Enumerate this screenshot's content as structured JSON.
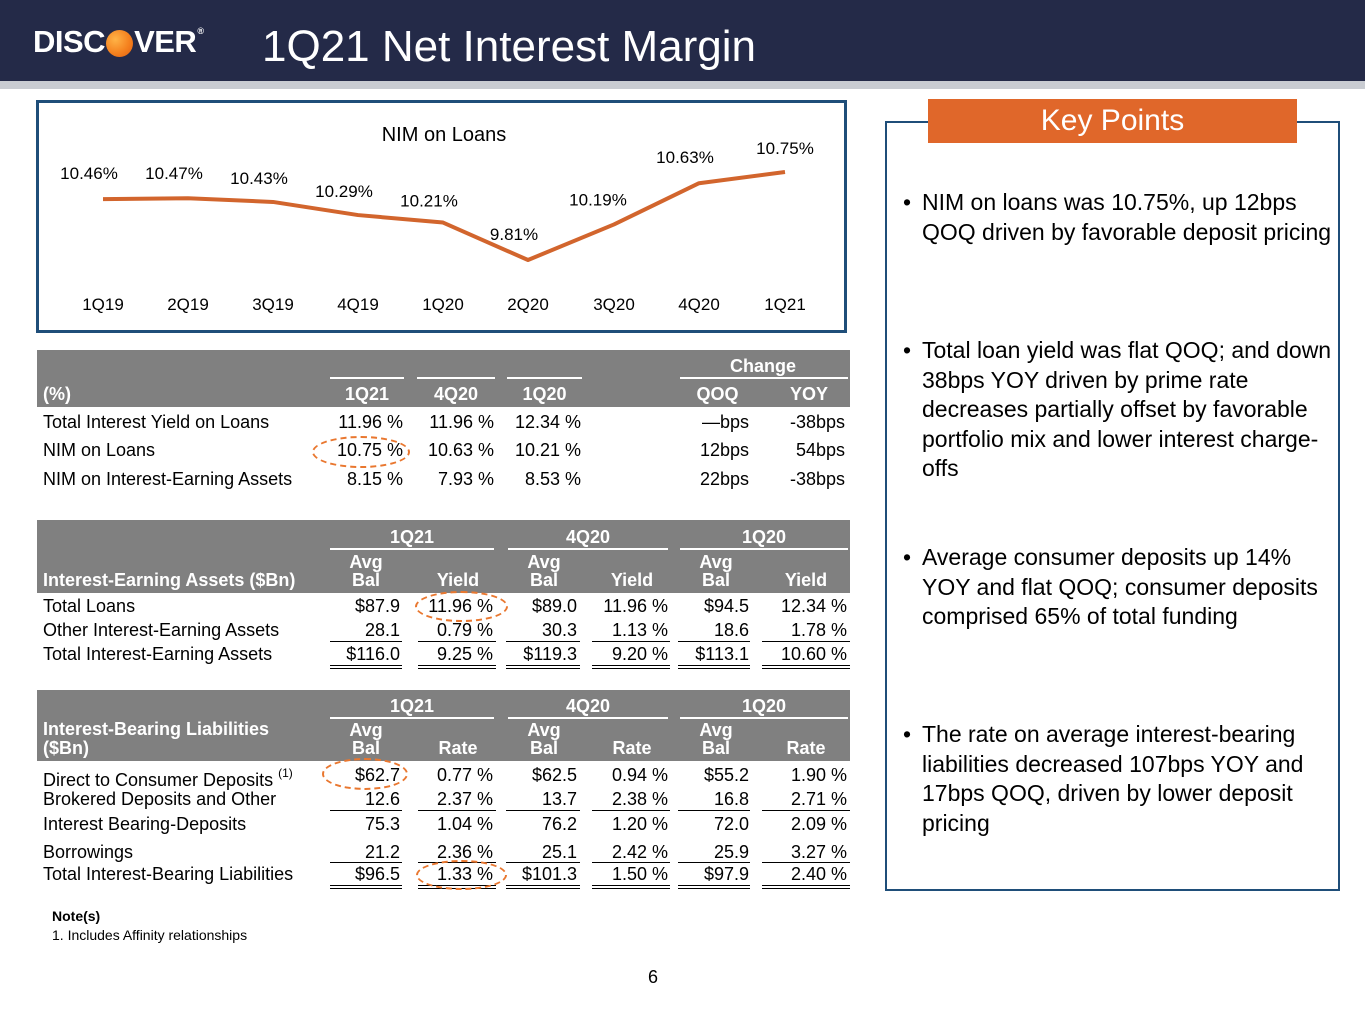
{
  "header": {
    "logo_text_a": "DISC",
    "logo_text_b": "VER",
    "logo_reg": "®",
    "title": "1Q21 Net Interest Margin"
  },
  "chart_data": {
    "type": "line",
    "title": "NIM on Loans",
    "categories": [
      "1Q19",
      "2Q19",
      "3Q19",
      "4Q19",
      "1Q20",
      "2Q20",
      "3Q20",
      "4Q20",
      "1Q21"
    ],
    "values": [
      10.46,
      10.47,
      10.43,
      10.29,
      10.21,
      9.81,
      10.19,
      10.63,
      10.75
    ],
    "labels": [
      "10.46%",
      "10.47%",
      "10.43%",
      "10.29%",
      "10.21%",
      "9.81%",
      "10.19%",
      "10.63%",
      "10.75%"
    ],
    "color": "#d2652d",
    "grid": false,
    "legend": "none"
  },
  "table1": {
    "change_label": "Change",
    "row_header": "(%)",
    "cols": [
      "1Q21",
      "4Q20",
      "1Q20",
      "QOQ",
      "YOY"
    ],
    "rows": [
      {
        "label": "Total Interest Yield on Loans",
        "v": [
          "11.96 %",
          "11.96 %",
          "12.34 %",
          "—bps",
          "-38bps"
        ]
      },
      {
        "label": "NIM on Loans",
        "v": [
          "10.75 %",
          "10.63 %",
          "10.21 %",
          "12bps",
          "54bps"
        ]
      },
      {
        "label": "NIM on Interest-Earning Assets",
        "v": [
          "8.15 %",
          "7.93 %",
          "8.53 %",
          "22bps",
          "-38bps"
        ]
      }
    ]
  },
  "table2": {
    "periods": [
      "1Q21",
      "4Q20",
      "1Q20"
    ],
    "row_header": "Interest-Earning Assets ($Bn)",
    "sub_a1": "Avg",
    "sub_a2": "Bal",
    "sub_b": "Yield",
    "rows": [
      {
        "label": "Total Loans",
        "v": [
          "$87.9",
          "11.96 %",
          "$89.0",
          "11.96 %",
          "$94.5",
          "12.34 %"
        ]
      },
      {
        "label": "Other Interest-Earning Assets",
        "v": [
          "28.1",
          "0.79 %",
          "30.3",
          "1.13 %",
          "18.6",
          "1.78 %"
        ]
      },
      {
        "label": "Total Interest-Earning Assets",
        "v": [
          "$116.0",
          "9.25 %",
          "$119.3",
          "9.20 %",
          "$113.1",
          "10.60 %"
        ]
      }
    ]
  },
  "table3": {
    "periods": [
      "1Q21",
      "4Q20",
      "1Q20"
    ],
    "row_header_1": "Interest-Bearing Liabilities",
    "row_header_2": "($Bn)",
    "sub_a1": "Avg",
    "sub_a2": "Bal",
    "sub_b": "Rate",
    "footnote_mark": "(1)",
    "rows": [
      {
        "label": "Direct to Consumer Deposits",
        "v": [
          "$62.7",
          "0.77 %",
          "$62.5",
          "0.94 %",
          "$55.2",
          "1.90 %"
        ]
      },
      {
        "label": "Brokered Deposits and Other",
        "v": [
          "12.6",
          "2.37 %",
          "13.7",
          "2.38 %",
          "16.8",
          "2.71 %"
        ]
      },
      {
        "label": "Interest Bearing-Deposits",
        "v": [
          "75.3",
          "1.04 %",
          "76.2",
          "1.20 %",
          "72.0",
          "2.09 %"
        ]
      },
      {
        "label": "Borrowings",
        "v": [
          "21.2",
          "2.36 %",
          "25.1",
          "2.42 %",
          "25.9",
          "3.27 %"
        ]
      },
      {
        "label": "Total Interest-Bearing Liabilities",
        "v": [
          "$96.5",
          "1.33 %",
          "$101.3",
          "1.50 %",
          "$97.9",
          "2.40 %"
        ]
      }
    ]
  },
  "notes": {
    "heading": "Note(s)",
    "item1": "1.  Includes Affinity relationships"
  },
  "key_points": {
    "title": "Key Points",
    "bullet_char": "•",
    "bullets": [
      "NIM on loans was 10.75%, up 12bps QOQ driven by favorable deposit pricing",
      "Total loan yield was flat QOQ; and down 38bps YOY driven by prime rate decreases partially offset by favorable portfolio mix and lower interest charge-offs",
      "Average consumer deposits up 14% YOY and flat QOQ; consumer deposits comprised 65% of total funding",
      "The rate on average interest-bearing liabilities decreased 107bps YOY and 17bps QOQ, driven by lower deposit pricing"
    ]
  },
  "page_number": "6",
  "colors": {
    "header_bg": "#242a48",
    "table_header": "#808080",
    "accent_orange": "#e0672a",
    "box_border": "#1f4e79"
  }
}
